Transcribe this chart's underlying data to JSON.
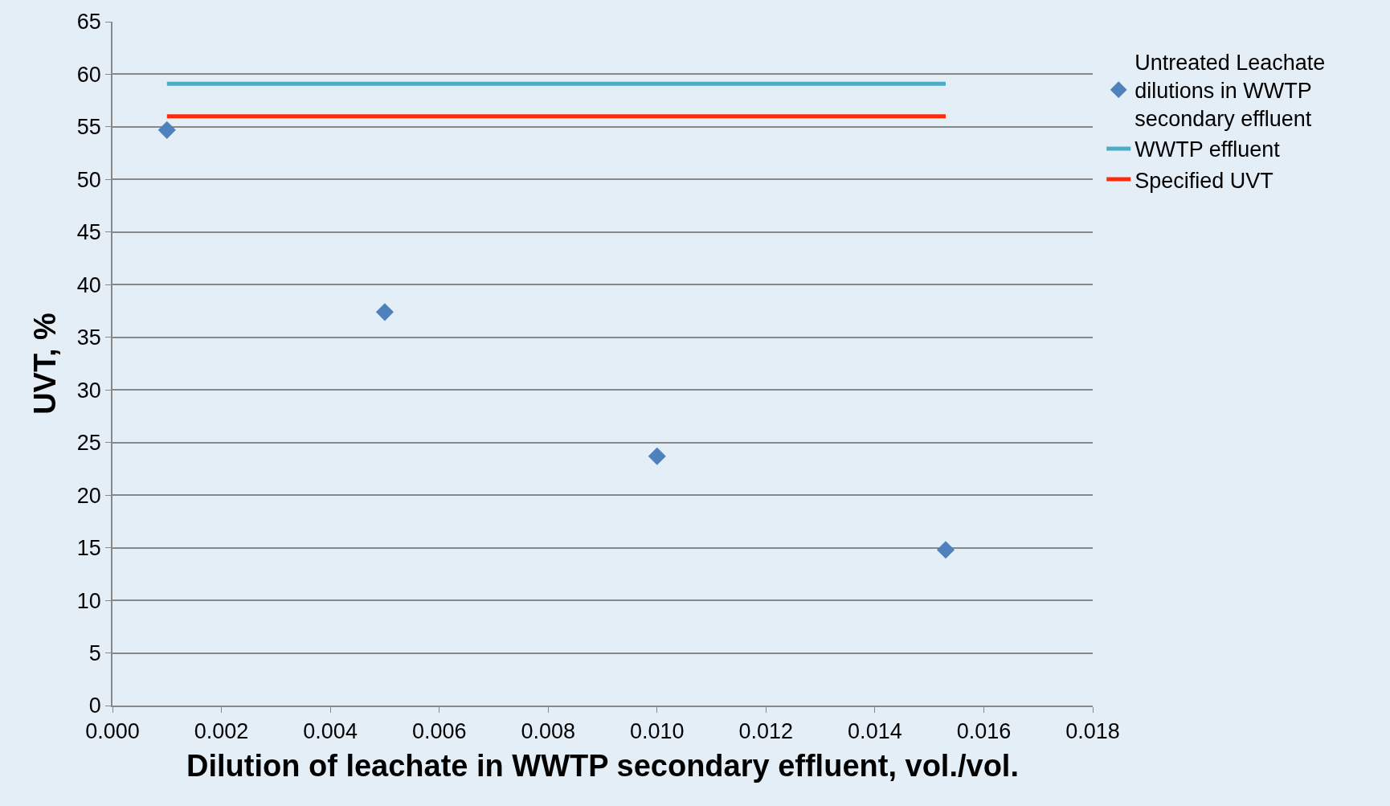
{
  "chart_data": {
    "type": "scatter",
    "xlabel": "Dilution of leachate in WWTP secondary effluent, vol./vol.",
    "ylabel": "UVT, %",
    "series": [
      {
        "name": "Untreated Leachate dilutions in WWTP secondary effluent",
        "color": "#4f81bd",
        "x": [
          0.001,
          0.005,
          0.01,
          0.0153
        ],
        "values": [
          54.7,
          37.4,
          23.7,
          14.8
        ],
        "marker": "diamond"
      },
      {
        "name": "WWTP effluent",
        "type": "line",
        "color": "#4bacc6",
        "x": [
          0.001,
          0.0153
        ],
        "values": [
          59.1,
          59.1
        ],
        "marker": "none"
      },
      {
        "name": "Specified UVT",
        "type": "line",
        "color": "#ff2a0a",
        "x": [
          0.001,
          0.0153
        ],
        "values": [
          56.0,
          56.0
        ],
        "marker": "none"
      }
    ],
    "xlim": [
      0,
      0.018
    ],
    "xticks": [
      {
        "value": 0,
        "label": "0.000"
      },
      {
        "value": 0.002,
        "label": "0.002"
      },
      {
        "value": 0.004,
        "label": "0.004"
      },
      {
        "value": 0.006,
        "label": "0.006"
      },
      {
        "value": 0.008,
        "label": "0.008"
      },
      {
        "value": 0.01,
        "label": "0.010"
      },
      {
        "value": 0.012,
        "label": "0.012"
      },
      {
        "value": 0.014,
        "label": "0.014"
      },
      {
        "value": 0.016,
        "label": "0.016"
      },
      {
        "value": 0.018,
        "label": "0.018"
      }
    ],
    "ylim": [
      0,
      65
    ],
    "yticks": [
      0,
      5,
      10,
      15,
      20,
      25,
      30,
      35,
      40,
      45,
      50,
      55,
      60,
      65
    ],
    "grid": "y",
    "legend": "right"
  }
}
